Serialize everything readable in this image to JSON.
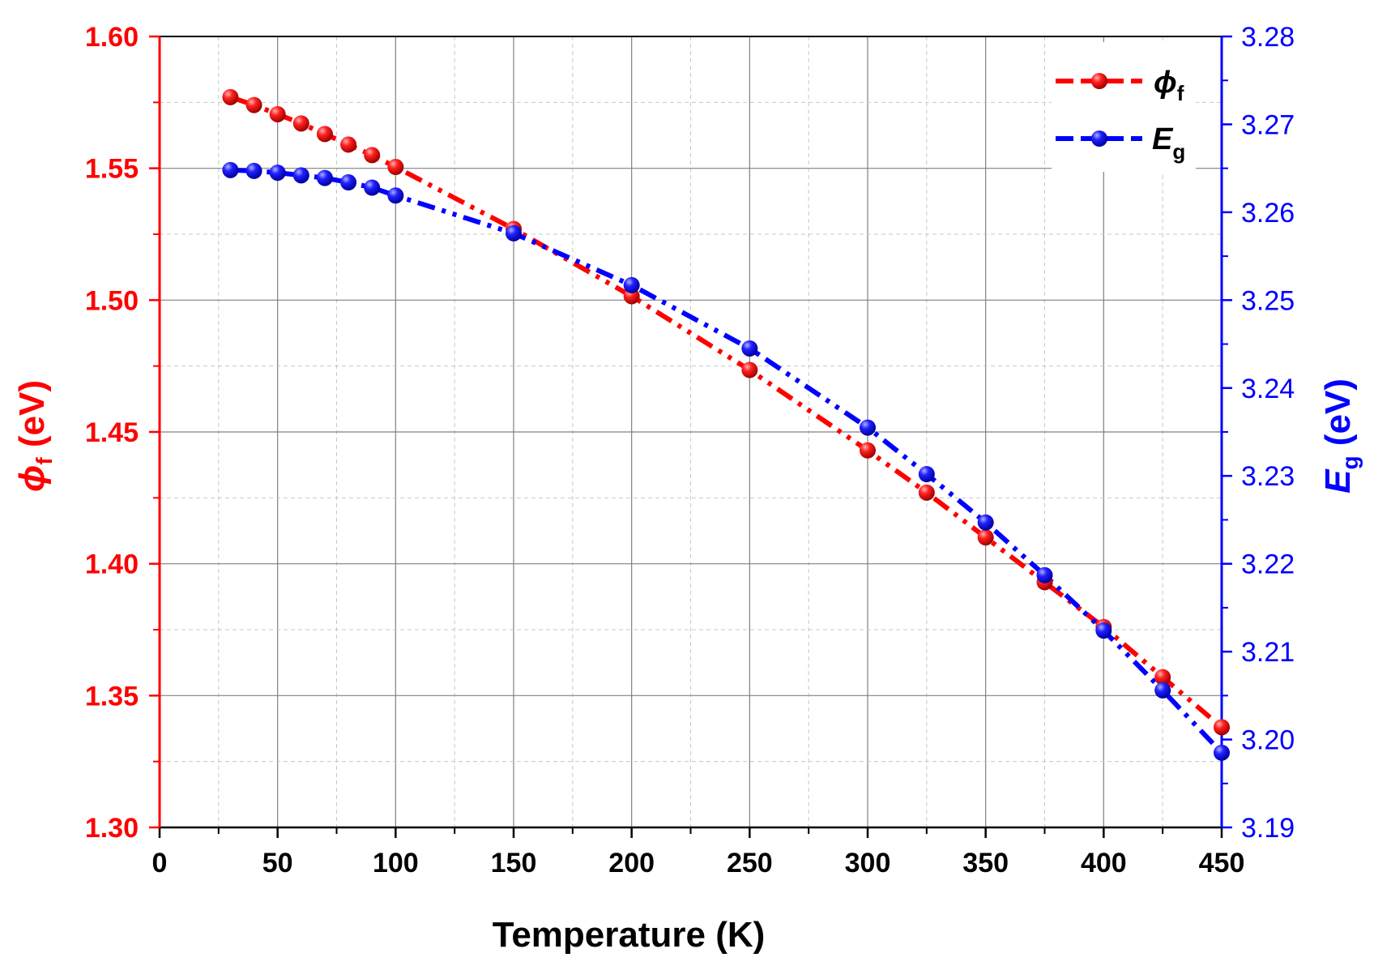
{
  "chart_data": {
    "type": "line",
    "xlabel": "Temperature (K)",
    "ylabel_left": {
      "symbol": "ϕ",
      "sub": "f",
      "unit": " (eV)"
    },
    "ylabel_right": {
      "symbol": "E",
      "sub": "g",
      "unit": " (eV)"
    },
    "xlim": [
      0,
      450
    ],
    "ylim_left": [
      1.3,
      1.6
    ],
    "ylim_right": [
      3.19,
      3.28
    ],
    "x_ticks": [
      "0",
      "50",
      "100",
      "150",
      "200",
      "250",
      "300",
      "350",
      "400",
      "450"
    ],
    "y_left_ticks": [
      "1.30",
      "1.35",
      "1.40",
      "1.45",
      "1.50",
      "1.55",
      "1.60"
    ],
    "y_right_ticks": [
      "3.19",
      "3.20",
      "3.21",
      "3.22",
      "3.23",
      "3.24",
      "3.25",
      "3.26",
      "3.27",
      "3.28"
    ],
    "grid": true,
    "legend_position": "top-right",
    "series": [
      {
        "name": "ϕ",
        "sub": "f",
        "axis": "left",
        "color": "#ff0000",
        "x": [
          30,
          40,
          50,
          60,
          70,
          80,
          90,
          100,
          150,
          200,
          250,
          300,
          325,
          350,
          375,
          400,
          425,
          450
        ],
        "y": [
          1.577,
          1.574,
          1.5705,
          1.567,
          1.563,
          1.559,
          1.555,
          1.5505,
          1.527,
          1.5015,
          1.4735,
          1.443,
          1.427,
          1.41,
          1.393,
          1.376,
          1.357,
          1.338
        ]
      },
      {
        "name": "E",
        "sub": "g",
        "axis": "right",
        "color": "#0000ff",
        "x": [
          30,
          40,
          50,
          60,
          70,
          80,
          90,
          100,
          150,
          200,
          250,
          300,
          325,
          350,
          375,
          400,
          425,
          450
        ],
        "y": [
          3.2648,
          3.2647,
          3.2645,
          3.2642,
          3.2639,
          3.2634,
          3.2628,
          3.2619,
          3.2576,
          3.2517,
          3.2445,
          3.2355,
          3.2302,
          3.2247,
          3.2187,
          3.2124,
          3.2056,
          3.1985
        ]
      }
    ]
  }
}
